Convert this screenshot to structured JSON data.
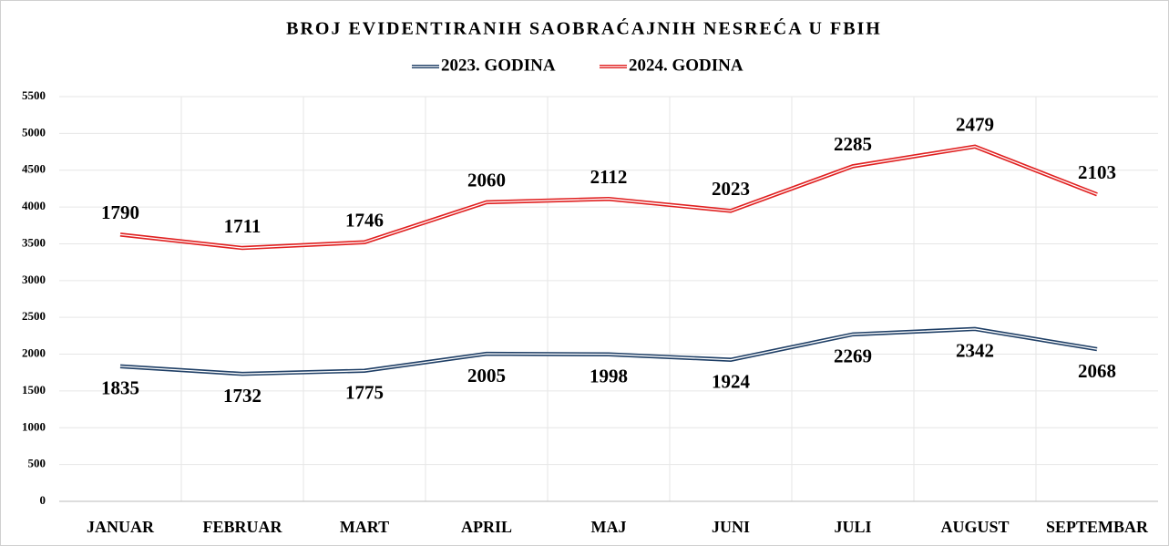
{
  "chart_data": {
    "type": "line",
    "stacked": true,
    "title": "BROJ EVIDENTIRANIH  SAOBRAĆAJNIH NESREĆA U FBIH",
    "categories": [
      "JANUAR",
      "FEBRUAR",
      "MART",
      "APRIL",
      "MAJ",
      "JUNI",
      "JULI",
      "AUGUST",
      "SEPTEMBAR"
    ],
    "series": [
      {
        "name": "2023. GODINA",
        "color": "#1f3f66",
        "values": [
          1835,
          1732,
          1775,
          2005,
          1998,
          1924,
          2269,
          2342,
          2068
        ]
      },
      {
        "name": "2024. GODINA",
        "color": "#e02020",
        "values": [
          1790,
          1711,
          1746,
          2060,
          2112,
          2023,
          2285,
          2479,
          2103
        ]
      }
    ],
    "ylim": [
      0,
      5500
    ],
    "yticks": [
      0,
      500,
      1000,
      1500,
      2000,
      2500,
      3000,
      3500,
      4000,
      4500,
      5000,
      5500
    ],
    "grid": true,
    "legend": "top"
  }
}
